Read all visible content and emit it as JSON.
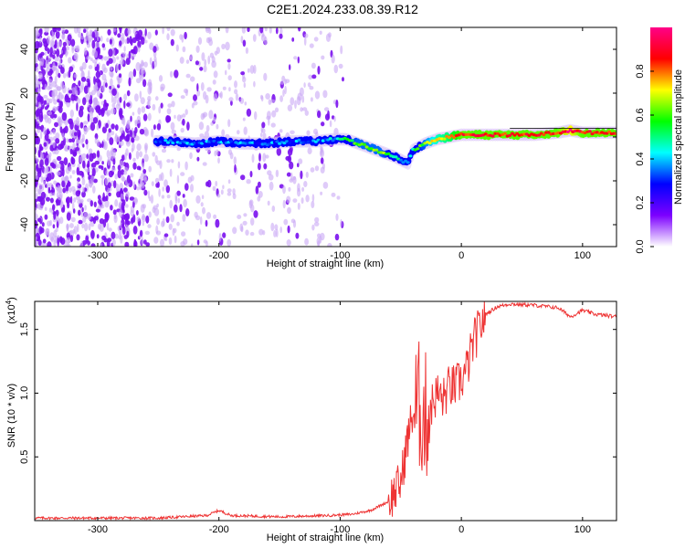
{
  "title": "C2E1.2024.233.08.39.R12",
  "chart_data": [
    {
      "type": "heatmap",
      "xlabel": "Height of straight line (km)",
      "ylabel": "Frequency (Hz)",
      "xlim": [
        -352,
        128
      ],
      "ylim": [
        -50,
        50
      ],
      "xticks": [
        -300,
        -200,
        -100,
        0,
        100
      ],
      "yticks": [
        -40,
        -20,
        0,
        20,
        40
      ],
      "colorbar": {
        "label": "Normalized spectral amplitude",
        "range": [
          0,
          1
        ],
        "ticks": [
          "0.0",
          "0.2",
          "0.4",
          "0.6",
          "0.8"
        ],
        "colors": [
          "#ffffff",
          "#7c00ff",
          "#0000ff",
          "#00ffff",
          "#00ff00",
          "#ffff00",
          "#ff0000",
          "#ff0088"
        ]
      },
      "ridge": {
        "x": [
          -252,
          -240,
          -220,
          -200,
          -180,
          -160,
          -140,
          -120,
          -105,
          -95,
          -85,
          -75,
          -65,
          -55,
          -48,
          -44,
          -40,
          -30,
          -20,
          -10,
          0,
          20,
          40,
          60,
          80,
          90,
          100,
          110,
          128
        ],
        "y": [
          -2,
          -2,
          -3,
          -2,
          -3,
          -3,
          -2,
          -2,
          -1,
          -1,
          -3,
          -5,
          -7,
          -9,
          -11,
          -12,
          -6,
          -3,
          -1,
          0,
          1,
          1,
          1,
          1,
          2,
          3,
          2,
          2,
          2
        ],
        "amplitude": [
          0.3,
          0.35,
          0.35,
          0.35,
          0.35,
          0.35,
          0.35,
          0.35,
          0.4,
          0.5,
          0.6,
          0.6,
          0.6,
          0.5,
          0.4,
          0.3,
          0.5,
          0.6,
          0.7,
          0.75,
          0.85,
          0.85,
          0.85,
          0.85,
          0.85,
          0.95,
          0.85,
          0.85,
          0.85
        ]
      }
    },
    {
      "type": "line",
      "xlabel": "Height of straight line (km)",
      "ylabel": "SNR (10 * v/v)",
      "y_multiplier": "(x10",
      "y_multiplier_exp": "4",
      "y_multiplier_close": ")",
      "xlim": [
        -352,
        128
      ],
      "ylim": [
        0,
        1.72
      ],
      "xticks": [
        -300,
        -200,
        -100,
        0,
        100
      ],
      "yticks": [
        "0.5",
        "1.0",
        "1.5"
      ],
      "series": [
        {
          "color": "#ee3333",
          "x": [
            -352,
            -300,
            -250,
            -210,
            -200,
            -190,
            -150,
            -110,
            -90,
            -75,
            -60,
            -50,
            -45,
            -40,
            -35,
            -30,
            -25,
            -20,
            -15,
            -10,
            -5,
            0,
            5,
            10,
            20,
            30,
            40,
            60,
            80,
            90,
            100,
            110,
            128
          ],
          "y": [
            0.02,
            0.02,
            0.02,
            0.04,
            0.08,
            0.04,
            0.03,
            0.04,
            0.05,
            0.08,
            0.15,
            0.3,
            0.6,
            0.85,
            0.9,
            0.8,
            0.9,
            1.0,
            0.95,
            1.05,
            1.05,
            1.1,
            1.2,
            1.4,
            1.62,
            1.68,
            1.7,
            1.69,
            1.67,
            1.6,
            1.65,
            1.62,
            1.6
          ]
        }
      ]
    }
  ]
}
